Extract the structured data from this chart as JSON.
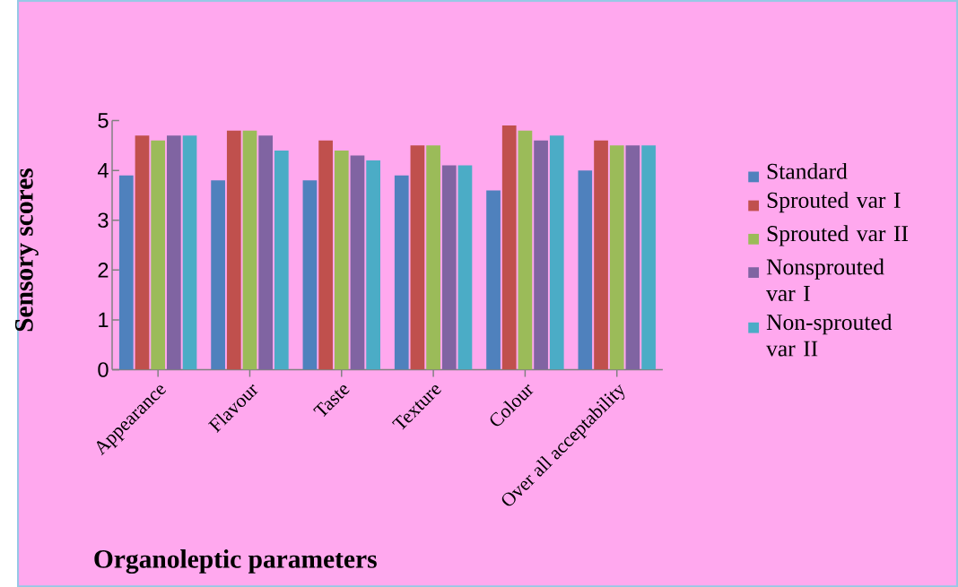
{
  "chart_data": {
    "type": "bar",
    "xlabel": "Organoleptic parameters",
    "ylabel": "Sensory  scores",
    "categories": [
      "Appearance",
      "Flavour",
      "Taste",
      "Texture",
      "Colour",
      "Over all acceptability"
    ],
    "series": [
      {
        "name": "Standard",
        "color": "#4f81bd",
        "values": [
          3.9,
          3.8,
          3.8,
          3.9,
          3.6,
          4.0
        ]
      },
      {
        "name": "Sprouted var I",
        "color": "#c0504d",
        "values": [
          4.7,
          4.8,
          4.6,
          4.5,
          4.9,
          4.6
        ]
      },
      {
        "name": "Sprouted var II",
        "color": "#9bbb59",
        "values": [
          4.6,
          4.8,
          4.4,
          4.5,
          4.8,
          4.5
        ]
      },
      {
        "name": "Nonsprouted var I",
        "color": "#8064a2",
        "values": [
          4.7,
          4.7,
          4.3,
          4.1,
          4.6,
          4.5
        ]
      },
      {
        "name": "Non-sprouted var II",
        "color": "#4bacc6",
        "values": [
          4.7,
          4.4,
          4.2,
          4.1,
          4.7,
          4.5
        ]
      }
    ],
    "ylim": [
      0,
      5
    ],
    "yticks": [
      0,
      1,
      2,
      3,
      4,
      5
    ],
    "grid": false,
    "legend": "right"
  }
}
